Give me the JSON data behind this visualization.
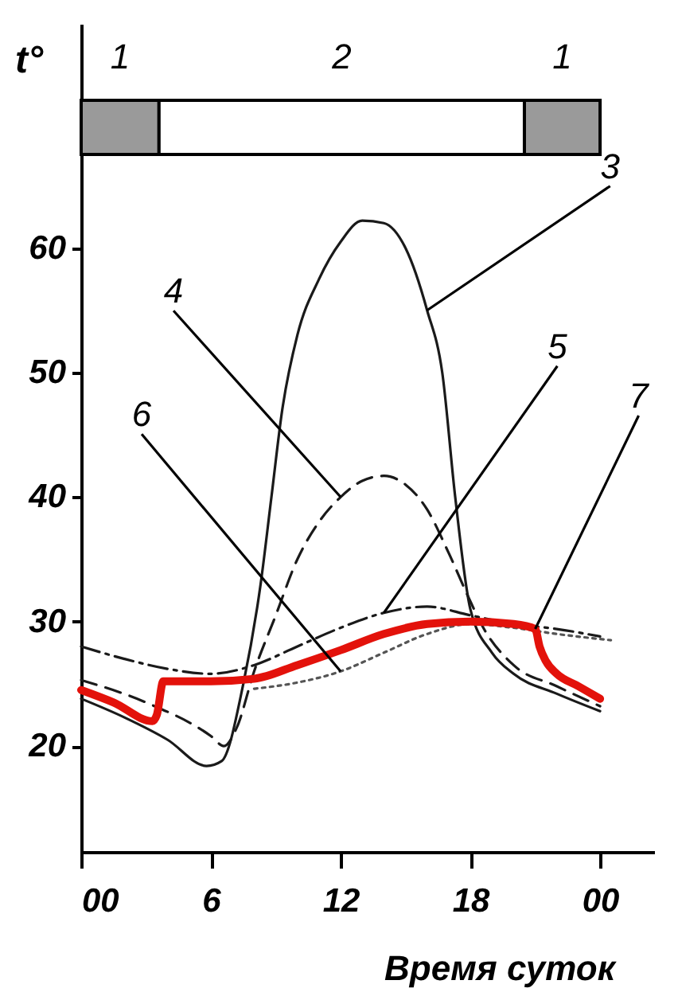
{
  "chart_data": {
    "type": "line",
    "xlabel": "Время суток",
    "ylabel": "t°",
    "xlim": [
      0,
      26.5
    ],
    "ylim": [
      11.5,
      78
    ],
    "xticks": [
      {
        "value": 0,
        "label": "00"
      },
      6,
      12,
      18,
      {
        "value": 24,
        "label": "00"
      }
    ],
    "yticks": [
      20,
      30,
      40,
      50,
      60
    ],
    "grid": false,
    "marker": "none",
    "bands": [
      {
        "axis": "x",
        "from": 0,
        "to": 3.6,
        "label": "1",
        "color": "#9a9a9a"
      },
      {
        "axis": "x",
        "from": 3.6,
        "to": 20.5,
        "label": "2",
        "color": "#ffffff"
      },
      {
        "axis": "x",
        "from": 20.5,
        "to": 24,
        "label": "1",
        "color": "#9a9a9a"
      }
    ],
    "series": [
      {
        "name": "3",
        "color": "#1a1a1a",
        "line_style": "solid",
        "x": [
          0,
          2,
          4,
          5.8,
          6.5,
          7.5,
          8.3,
          8.8,
          9.3,
          10,
          11,
          12,
          13,
          14,
          15,
          16,
          16.7,
          17.3,
          18,
          19,
          20,
          22,
          24
        ],
        "values": [
          23.8,
          22.3,
          20.5,
          18.4,
          18.8,
          25,
          33,
          40,
          47,
          53,
          57.5,
          60.5,
          62.2,
          62,
          60,
          55,
          50,
          40,
          31,
          27.5,
          25.8,
          24.2,
          22.8
        ]
      },
      {
        "name": "4",
        "color": "#1a1a1a",
        "line_style": "dashed",
        "x": [
          0,
          3,
          6,
          6.6,
          7.2,
          8,
          9,
          10,
          11,
          12,
          13,
          14,
          15,
          16,
          17,
          17.9,
          18.6,
          20,
          22,
          24
        ],
        "values": [
          25.3,
          23.5,
          20.8,
          20,
          21.5,
          26,
          30.5,
          35,
          38,
          40,
          41.3,
          41.7,
          41,
          39,
          35.5,
          32,
          29.5,
          26.5,
          24.8,
          23.2
        ]
      },
      {
        "name": "5",
        "color": "#1a1a1a",
        "line_style": "dashdot",
        "x": [
          0,
          2,
          4,
          6,
          8,
          10,
          12,
          14,
          16,
          18,
          20,
          22,
          24
        ],
        "values": [
          28,
          27,
          26.2,
          25.8,
          26.5,
          28,
          29.5,
          30.7,
          31.2,
          30.5,
          29.8,
          29.4,
          28.8
        ]
      },
      {
        "name": "6",
        "color": "#555555",
        "line_style": "dotted",
        "x": [
          8,
          10,
          12,
          14,
          16,
          18,
          20,
          22,
          24.5
        ],
        "values": [
          24.6,
          25.1,
          26,
          27.5,
          29,
          29.8,
          29.5,
          29,
          28.5
        ]
      },
      {
        "name": "7",
        "color": "#e3120b",
        "line_style": "solid",
        "x": [
          0,
          1.5,
          3.3,
          3.5,
          3.8,
          6,
          8,
          10,
          12,
          14,
          16,
          18,
          20,
          21,
          21.2,
          21.5,
          22,
          23,
          24
        ],
        "values": [
          24.5,
          23.5,
          22,
          22.5,
          25.2,
          25.2,
          25.4,
          26.5,
          27.7,
          29,
          29.8,
          30,
          29.8,
          29.4,
          28,
          26.8,
          25.8,
          24.8,
          23.8
        ]
      }
    ]
  }
}
